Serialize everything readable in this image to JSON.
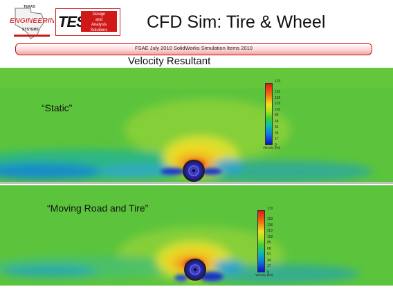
{
  "header": {
    "title": "CFD Sim: Tire & Wheel",
    "banner": "FSAE July 2010 SolidWorks Simulation Items 2010",
    "subtitle": "Velocity Resultant",
    "logo_left": {
      "line1": "TEXAS",
      "line2": "ENGINEERING",
      "line3": "SYSTEMS"
    },
    "logo_right": {
      "mark": "TES",
      "line1": "Design",
      "line2": "and",
      "line3": "Analysis",
      "line4": "Solutions"
    }
  },
  "panels": [
    {
      "label": "“Static”"
    },
    {
      "label": "“Moving Road and Tire”"
    }
  ],
  "legend": {
    "max": "170",
    "ticks": [
      "153",
      "136",
      "119",
      "102",
      "85",
      "68",
      "51",
      "34",
      "17",
      "0"
    ],
    "unit": "Velocity [ft/s]"
  },
  "colors": {
    "banner_border": "#c01010",
    "field_base": "#5cc43c",
    "logo_red": "#d01818"
  }
}
